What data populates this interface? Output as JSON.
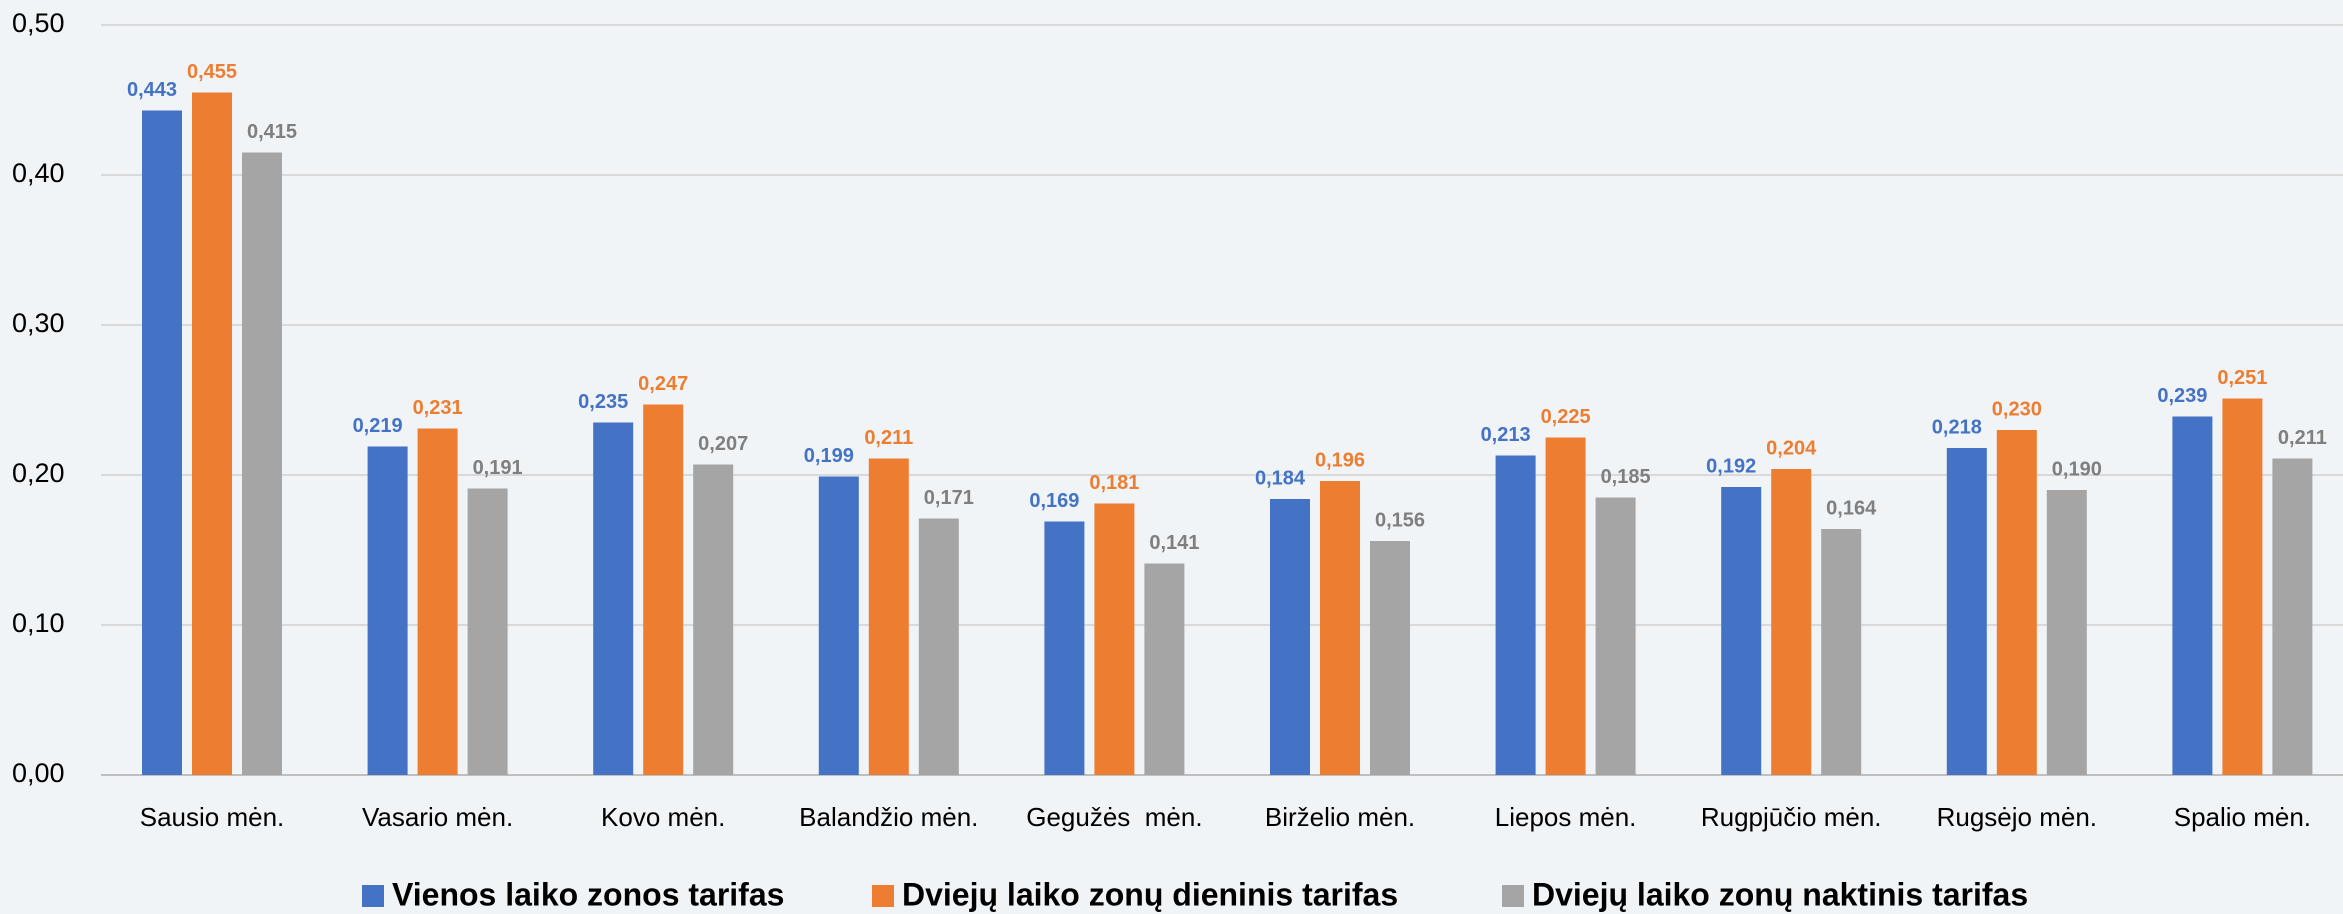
{
  "chart_data": {
    "type": "bar",
    "categories": [
      "Sausio mėn.",
      "Vasario mėn.",
      "Kovo mėn.",
      "Balandžio mėn.",
      "Gegužės  mėn.",
      "Birželio mėn.",
      "Liepos mėn.",
      "Rugpjūčio mėn.",
      "Rugsėjo mėn.",
      "Spalio mėn."
    ],
    "series": [
      {
        "name": "Vienos laiko zonos tarifas",
        "color": "#4472c4",
        "values": [
          0.443,
          0.219,
          0.235,
          0.199,
          0.169,
          0.184,
          0.213,
          0.192,
          0.218,
          0.239
        ],
        "value_labels": [
          "0,443",
          "0,219",
          "0,235",
          "0,199",
          "0,169",
          "0,184",
          "0,213",
          "0,192",
          "0,218",
          "0,239"
        ]
      },
      {
        "name": "Dviejų laiko zonų dieninis tarifas",
        "color": "#ed7d31",
        "values": [
          0.455,
          0.231,
          0.247,
          0.211,
          0.181,
          0.196,
          0.225,
          0.204,
          0.23,
          0.251
        ],
        "value_labels": [
          "0,455",
          "0,231",
          "0,247",
          "0,211",
          "0,181",
          "0,196",
          "0,225",
          "0,204",
          "0,230",
          "0,251"
        ]
      },
      {
        "name": "Dviejų laiko zonų naktinis tarifas",
        "color": "#a5a5a5",
        "values": [
          0.415,
          0.191,
          0.207,
          0.171,
          0.141,
          0.156,
          0.185,
          0.164,
          0.19,
          0.211
        ],
        "value_labels": [
          "0,415",
          "0,191",
          "0,207",
          "0,171",
          "0,141",
          "0,156",
          "0,185",
          "0,164",
          "0,190",
          "0,211"
        ]
      }
    ],
    "ylim": [
      0,
      0.5
    ],
    "yticks": [
      {
        "value": 0,
        "label": "0,00"
      },
      {
        "value": 0.1,
        "label": "0,10"
      },
      {
        "value": 0.2,
        "label": "0,20"
      },
      {
        "value": 0.3,
        "label": "0,30"
      },
      {
        "value": 0.4,
        "label": "0,40"
      },
      {
        "value": 0.5,
        "label": "0,50"
      }
    ],
    "grid": true,
    "legend": "bottom"
  }
}
